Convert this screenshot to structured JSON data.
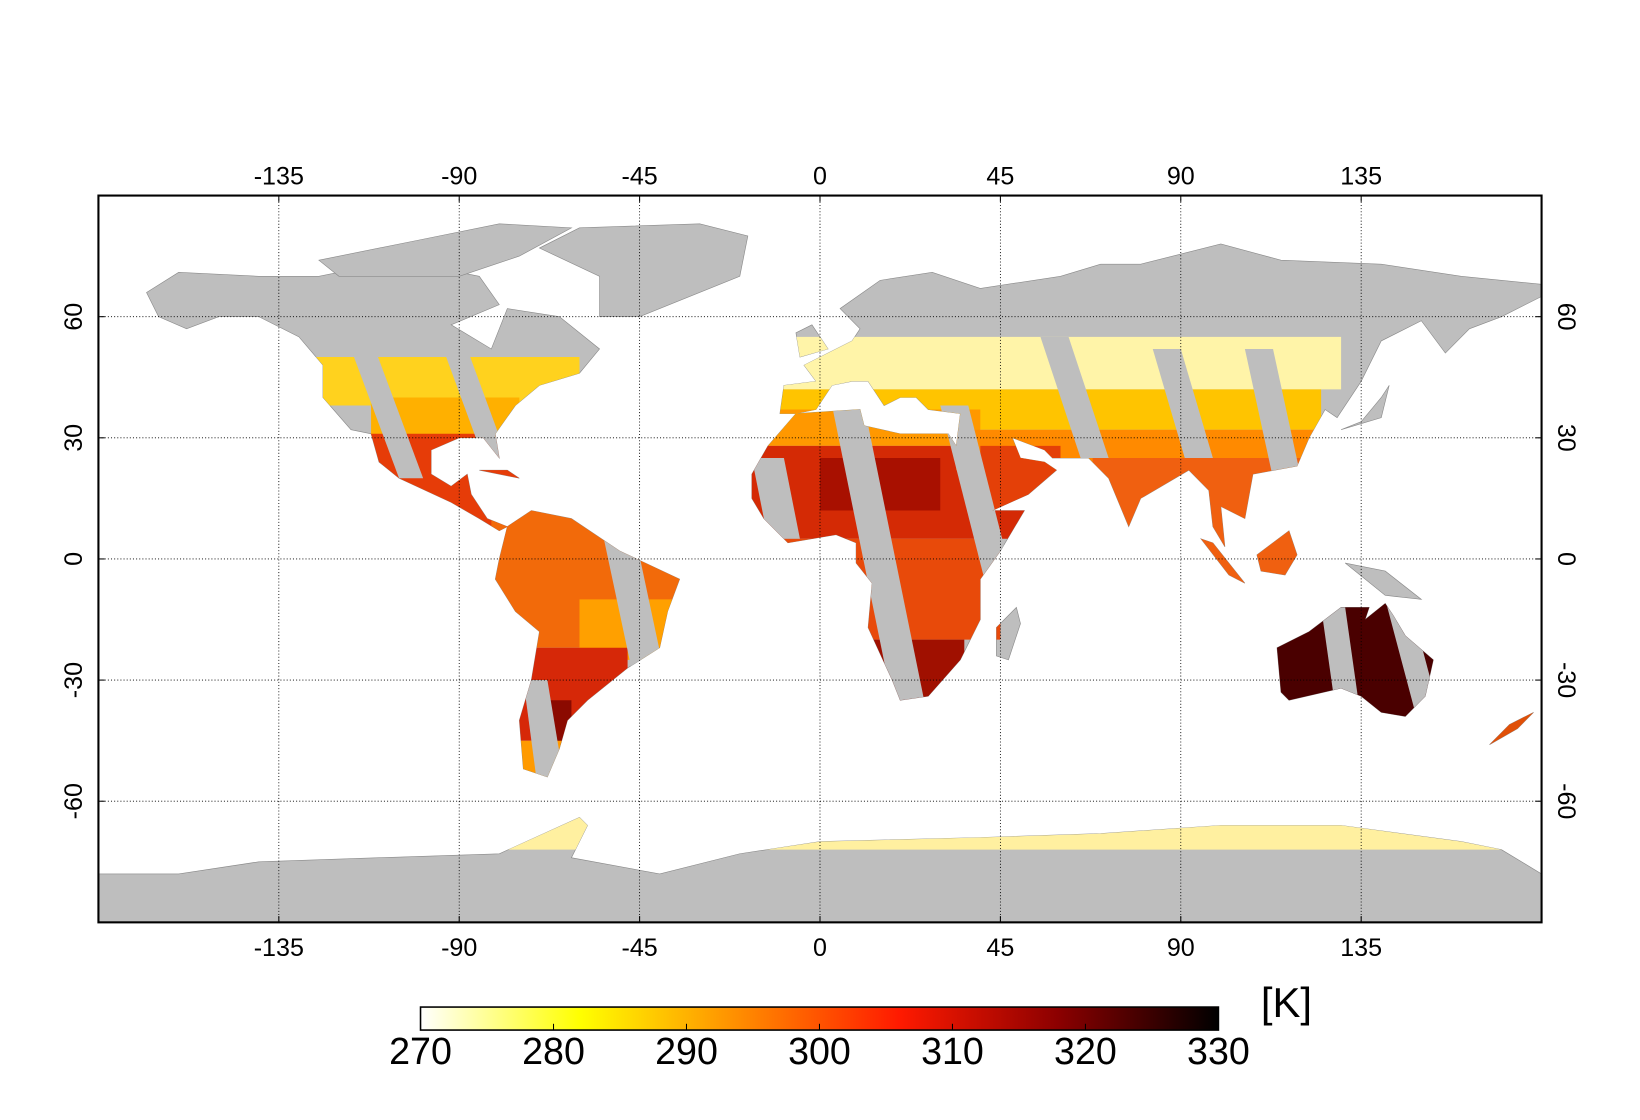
{
  "chart_data": {
    "type": "map",
    "xlim": [
      -180,
      180
    ],
    "ylim": [
      -90,
      90
    ],
    "xticks": [
      -135,
      -90,
      -45,
      0,
      45,
      90,
      135
    ],
    "yticks": [
      -60,
      -30,
      0,
      30,
      60
    ],
    "grid": true,
    "land_color": "#bebebe",
    "colorbar": {
      "label": "[K]",
      "lim": [
        270,
        330
      ],
      "ticks": [
        270,
        280,
        290,
        300,
        310,
        320,
        330
      ],
      "colors": [
        "#ffffff",
        "#ffff00",
        "#ff8c00",
        "#ff1a00",
        "#8b0000",
        "#000000"
      ]
    }
  }
}
